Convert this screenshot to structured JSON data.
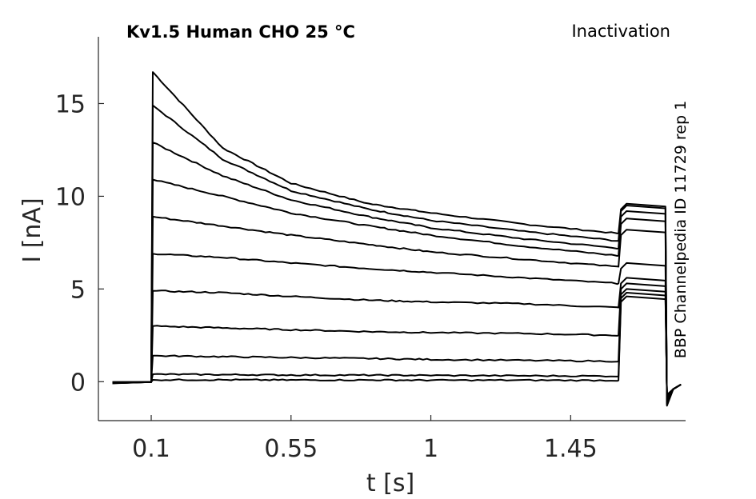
{
  "chart_data": {
    "type": "line",
    "title": "Kv1.5  Human  CHO  25 °C",
    "protocol": "Inactivation",
    "side_note": "BBP Channelpedia ID 11729 rep 1",
    "xlabel": "t [s]",
    "ylabel": "I [nA]",
    "xlim": [
      -0.07,
      1.82
    ],
    "ylim": [
      -2.1,
      18.6
    ],
    "xticks": [
      0.1,
      0.55,
      1,
      1.45
    ],
    "xtick_labels": [
      "0.1",
      "0.55",
      "1",
      "1.45"
    ],
    "yticks": [
      0,
      5,
      10,
      15
    ],
    "ytick_labels": [
      "0",
      "5",
      "10",
      "15"
    ],
    "grid": false,
    "pulse_start": 0.1,
    "pulse_end": 1.6,
    "tail_end": 1.76,
    "series": [
      {
        "values": [
          {
            "t": 0.105,
            "I": 16.7
          },
          {
            "t": 0.33,
            "I": 12.6
          },
          {
            "t": 0.55,
            "I": 10.7
          },
          {
            "t": 0.8,
            "I": 9.6
          },
          {
            "t": 1.0,
            "I": 9.1
          },
          {
            "t": 1.3,
            "I": 8.5
          },
          {
            "t": 1.6,
            "I": 8.0
          }
        ],
        "tail": 9.6
      },
      {
        "values": [
          {
            "t": 0.105,
            "I": 14.9
          },
          {
            "t": 0.33,
            "I": 12.0
          },
          {
            "t": 0.55,
            "I": 10.3
          },
          {
            "t": 0.8,
            "I": 9.3
          },
          {
            "t": 1.0,
            "I": 8.7
          },
          {
            "t": 1.3,
            "I": 8.1
          },
          {
            "t": 1.6,
            "I": 7.6
          }
        ],
        "tail": 9.5
      },
      {
        "values": [
          {
            "t": 0.105,
            "I": 12.9
          },
          {
            "t": 0.33,
            "I": 11.1
          },
          {
            "t": 0.55,
            "I": 9.8
          },
          {
            "t": 0.8,
            "I": 8.9
          },
          {
            "t": 1.0,
            "I": 8.3
          },
          {
            "t": 1.3,
            "I": 7.7
          },
          {
            "t": 1.6,
            "I": 7.2
          }
        ],
        "tail": 9.2
      },
      {
        "values": [
          {
            "t": 0.105,
            "I": 10.9
          },
          {
            "t": 0.33,
            "I": 10.0
          },
          {
            "t": 0.55,
            "I": 9.1
          },
          {
            "t": 0.8,
            "I": 8.4
          },
          {
            "t": 1.0,
            "I": 7.9
          },
          {
            "t": 1.3,
            "I": 7.3
          },
          {
            "t": 1.6,
            "I": 6.8
          }
        ],
        "tail": 8.8
      },
      {
        "values": [
          {
            "t": 0.105,
            "I": 8.9
          },
          {
            "t": 0.33,
            "I": 8.4
          },
          {
            "t": 0.55,
            "I": 7.9
          },
          {
            "t": 0.8,
            "I": 7.4
          },
          {
            "t": 1.0,
            "I": 7.0
          },
          {
            "t": 1.3,
            "I": 6.6
          },
          {
            "t": 1.6,
            "I": 6.2
          }
        ],
        "tail": 8.2
      },
      {
        "values": [
          {
            "t": 0.105,
            "I": 6.9
          },
          {
            "t": 0.33,
            "I": 6.7
          },
          {
            "t": 0.55,
            "I": 6.4
          },
          {
            "t": 0.8,
            "I": 6.1
          },
          {
            "t": 1.0,
            "I": 5.9
          },
          {
            "t": 1.3,
            "I": 5.6
          },
          {
            "t": 1.6,
            "I": 5.3
          }
        ],
        "tail": 6.4
      },
      {
        "values": [
          {
            "t": 0.105,
            "I": 4.9
          },
          {
            "t": 0.33,
            "I": 4.8
          },
          {
            "t": 0.55,
            "I": 4.6
          },
          {
            "t": 0.8,
            "I": 4.4
          },
          {
            "t": 1.0,
            "I": 4.3
          },
          {
            "t": 1.3,
            "I": 4.2
          },
          {
            "t": 1.6,
            "I": 4.0
          }
        ],
        "tail": 5.6
      },
      {
        "values": [
          {
            "t": 0.105,
            "I": 3.0
          },
          {
            "t": 0.33,
            "I": 2.9
          },
          {
            "t": 0.55,
            "I": 2.8
          },
          {
            "t": 0.8,
            "I": 2.7
          },
          {
            "t": 1.0,
            "I": 2.65
          },
          {
            "t": 1.3,
            "I": 2.6
          },
          {
            "t": 1.6,
            "I": 2.5
          }
        ],
        "tail": 5.3
      },
      {
        "values": [
          {
            "t": 0.105,
            "I": 1.4
          },
          {
            "t": 0.33,
            "I": 1.35
          },
          {
            "t": 0.55,
            "I": 1.3
          },
          {
            "t": 0.8,
            "I": 1.25
          },
          {
            "t": 1.0,
            "I": 1.2
          },
          {
            "t": 1.3,
            "I": 1.15
          },
          {
            "t": 1.6,
            "I": 1.1
          }
        ],
        "tail": 5.0
      },
      {
        "values": [
          {
            "t": 0.105,
            "I": 0.4
          },
          {
            "t": 0.33,
            "I": 0.38
          },
          {
            "t": 0.55,
            "I": 0.36
          },
          {
            "t": 0.8,
            "I": 0.35
          },
          {
            "t": 1.0,
            "I": 0.34
          },
          {
            "t": 1.3,
            "I": 0.32
          },
          {
            "t": 1.6,
            "I": 0.3
          }
        ],
        "tail": 4.8
      },
      {
        "values": [
          {
            "t": 0.105,
            "I": 0.1
          },
          {
            "t": 0.33,
            "I": 0.1
          },
          {
            "t": 0.55,
            "I": 0.09
          },
          {
            "t": 0.8,
            "I": 0.09
          },
          {
            "t": 1.0,
            "I": 0.08
          },
          {
            "t": 1.3,
            "I": 0.08
          },
          {
            "t": 1.6,
            "I": 0.07
          }
        ],
        "tail": 4.6
      }
    ]
  }
}
